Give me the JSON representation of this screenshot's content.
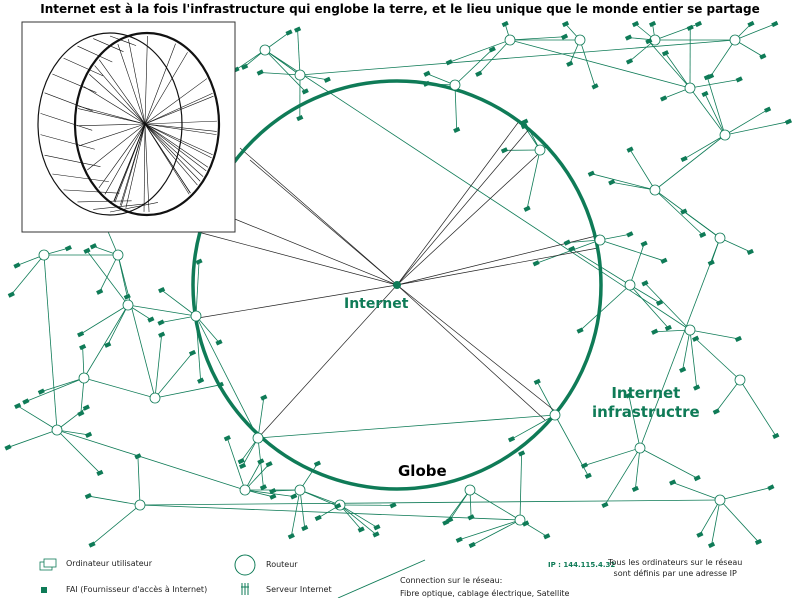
{
  "title": "Internet est à la fois l'infrastructure qui englobe la terre, et le lieu unique que le monde entier se partage",
  "labels": {
    "internet": "Internet",
    "infrastructure_line1": "Internet",
    "infrastructure_line2": "infrastructre",
    "globe": "Globe"
  },
  "legend": {
    "user_computer": "Ordinateur utilisateur",
    "isp": "FAI (Fournisseur d'accès à Internet)",
    "router": "Routeur",
    "server": "Serveur Internet",
    "connection_line1": "Connection sur le réseau:",
    "connection_line2": "Fibre optique, cablage électrique, Satellite",
    "ip_example": "IP : 144.115.4.32",
    "ip_note_line1": "Tous les ordinateurs sur le réseau",
    "ip_note_line2": "sont définis par une adresse IP"
  },
  "colors": {
    "network": "#0f7b57",
    "globe": "#0f7b57",
    "text": "#000000"
  }
}
